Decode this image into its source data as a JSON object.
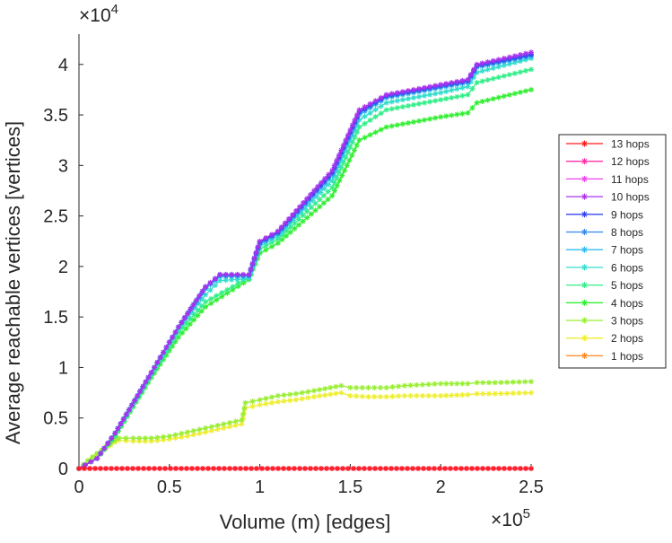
{
  "chart_data": {
    "type": "line",
    "title": "",
    "xlabel": "Volume (m) [edges]",
    "ylabel": "Average reachable vertices [vertices]",
    "x_multiplier": "×10",
    "x_exponent": "5",
    "y_multiplier": "×10",
    "y_exponent": "4",
    "xlim": [
      0,
      2.5
    ],
    "ylim": [
      0,
      4.3
    ],
    "x_ticks": [
      {
        "v": 0,
        "label": "0"
      },
      {
        "v": 0.5,
        "label": "0.5"
      },
      {
        "v": 1,
        "label": "1"
      },
      {
        "v": 1.5,
        "label": "1.5"
      },
      {
        "v": 2,
        "label": "2"
      },
      {
        "v": 2.5,
        "label": "2.5"
      }
    ],
    "y_ticks": [
      {
        "v": 0,
        "label": "0"
      },
      {
        "v": 0.5,
        "label": "0.5"
      },
      {
        "v": 1,
        "label": "1"
      },
      {
        "v": 1.5,
        "label": "1.5"
      },
      {
        "v": 2,
        "label": "2"
      },
      {
        "v": 2.5,
        "label": "2.5"
      },
      {
        "v": 3,
        "label": "3"
      },
      {
        "v": 3.5,
        "label": "3.5"
      },
      {
        "v": 4,
        "label": "4"
      }
    ],
    "legend_position": "right",
    "series": [
      {
        "name": "13 hops",
        "color": "#ff1a1a",
        "x": [
          0,
          2.5
        ],
        "y": [
          0,
          0
        ]
      },
      {
        "name": "12 hops",
        "color": "#ff33aa",
        "x": [
          0,
          2.5
        ],
        "y": [
          0,
          0
        ]
      },
      {
        "name": "11 hops",
        "color": "#ee44ee",
        "x": [
          0,
          2.5
        ],
        "y": [
          0,
          0
        ]
      },
      {
        "name": "10 hops",
        "color": "#aa33ee",
        "x": [
          0,
          0.1,
          0.2,
          0.4,
          0.55,
          0.7,
          0.78,
          0.94,
          1.0,
          1.1,
          1.4,
          1.55,
          1.7,
          2.0,
          2.15,
          2.2,
          2.5
        ],
        "y": [
          0,
          0.1,
          0.35,
          0.95,
          1.4,
          1.8,
          1.92,
          1.92,
          2.25,
          2.35,
          2.95,
          3.55,
          3.7,
          3.8,
          3.85,
          4.0,
          4.12
        ]
      },
      {
        "name": "9 hops",
        "color": "#3344ee",
        "x": [
          0,
          0.1,
          0.2,
          0.4,
          0.55,
          0.7,
          0.78,
          0.94,
          1.0,
          1.1,
          1.4,
          1.55,
          1.7,
          2.0,
          2.15,
          2.2,
          2.5
        ],
        "y": [
          0,
          0.1,
          0.35,
          0.95,
          1.4,
          1.8,
          1.92,
          1.92,
          2.24,
          2.34,
          2.93,
          3.53,
          3.69,
          3.79,
          3.84,
          3.99,
          4.1
        ]
      },
      {
        "name": "8 hops",
        "color": "#3388ee",
        "x": [
          0,
          0.1,
          0.2,
          0.4,
          0.55,
          0.7,
          0.78,
          0.94,
          1.0,
          1.1,
          1.4,
          1.55,
          1.7,
          2.0,
          2.15,
          2.2,
          2.5
        ],
        "y": [
          0,
          0.1,
          0.35,
          0.95,
          1.4,
          1.79,
          1.91,
          1.91,
          2.23,
          2.33,
          2.92,
          3.52,
          3.68,
          3.78,
          3.83,
          3.98,
          4.09
        ]
      },
      {
        "name": "7 hops",
        "color": "#33bbee",
        "x": [
          0,
          0.1,
          0.2,
          0.4,
          0.55,
          0.7,
          0.78,
          0.94,
          1.0,
          1.1,
          1.4,
          1.55,
          1.7,
          2.0,
          2.15,
          2.2,
          2.5
        ],
        "y": [
          0,
          0.1,
          0.35,
          0.95,
          1.4,
          1.78,
          1.9,
          1.9,
          2.22,
          2.32,
          2.9,
          3.5,
          3.67,
          3.77,
          3.82,
          3.97,
          4.08
        ]
      },
      {
        "name": "6 hops",
        "color": "#33ddcc",
        "x": [
          0,
          0.1,
          0.2,
          0.4,
          0.55,
          0.7,
          0.78,
          0.94,
          1.0,
          1.1,
          1.4,
          1.55,
          1.7,
          2.0,
          2.15,
          2.2,
          2.5
        ],
        "y": [
          0,
          0.1,
          0.35,
          0.94,
          1.38,
          1.72,
          1.86,
          1.88,
          2.2,
          2.3,
          2.85,
          3.45,
          3.62,
          3.72,
          3.78,
          3.92,
          4.06
        ]
      },
      {
        "name": "5 hops",
        "color": "#33ee88",
        "x": [
          0,
          0.1,
          0.2,
          0.4,
          0.55,
          0.7,
          0.85,
          0.94,
          1.0,
          1.1,
          1.4,
          1.55,
          1.7,
          2.0,
          2.15,
          2.2,
          2.5
        ],
        "y": [
          0,
          0.1,
          0.33,
          0.92,
          1.35,
          1.65,
          1.8,
          1.9,
          2.17,
          2.27,
          2.78,
          3.38,
          3.55,
          3.65,
          3.7,
          3.82,
          3.95
        ]
      },
      {
        "name": "4 hops",
        "color": "#33ee33",
        "x": [
          0,
          0.1,
          0.2,
          0.4,
          0.55,
          0.7,
          0.85,
          0.94,
          1.0,
          1.1,
          1.4,
          1.55,
          1.7,
          2.0,
          2.15,
          2.2,
          2.5
        ],
        "y": [
          0,
          0.1,
          0.32,
          0.9,
          1.3,
          1.6,
          1.77,
          1.87,
          2.13,
          2.23,
          2.7,
          3.25,
          3.38,
          3.48,
          3.52,
          3.62,
          3.75
        ]
      },
      {
        "name": "3 hops",
        "color": "#99ee33",
        "x": [
          0,
          0.05,
          0.1,
          0.2,
          0.22,
          0.3,
          0.4,
          0.5,
          0.6,
          0.7,
          0.8,
          0.9,
          0.92,
          1.0,
          1.1,
          1.2,
          1.3,
          1.45,
          1.5,
          1.6,
          1.7,
          1.8,
          2.0,
          2.15,
          2.2,
          2.3,
          2.5
        ],
        "y": [
          0,
          0.08,
          0.15,
          0.28,
          0.3,
          0.3,
          0.3,
          0.32,
          0.36,
          0.4,
          0.44,
          0.48,
          0.65,
          0.68,
          0.72,
          0.74,
          0.77,
          0.82,
          0.8,
          0.8,
          0.8,
          0.82,
          0.84,
          0.84,
          0.85,
          0.85,
          0.86
        ]
      },
      {
        "name": "2 hops",
        "color": "#eeee33",
        "x": [
          0,
          0.05,
          0.1,
          0.2,
          0.22,
          0.3,
          0.4,
          0.5,
          0.6,
          0.7,
          0.8,
          0.9,
          0.92,
          1.0,
          1.1,
          1.2,
          1.3,
          1.45,
          1.5,
          1.6,
          1.7,
          1.8,
          2.0,
          2.15,
          2.2,
          2.3,
          2.5
        ],
        "y": [
          0,
          0.07,
          0.14,
          0.26,
          0.28,
          0.27,
          0.27,
          0.29,
          0.32,
          0.36,
          0.4,
          0.44,
          0.6,
          0.63,
          0.66,
          0.68,
          0.71,
          0.75,
          0.72,
          0.71,
          0.71,
          0.72,
          0.72,
          0.73,
          0.74,
          0.74,
          0.75
        ]
      },
      {
        "name": "1 hops",
        "color": "#ff8822",
        "x": [
          0,
          2.5
        ],
        "y": [
          0,
          0
        ]
      }
    ]
  }
}
